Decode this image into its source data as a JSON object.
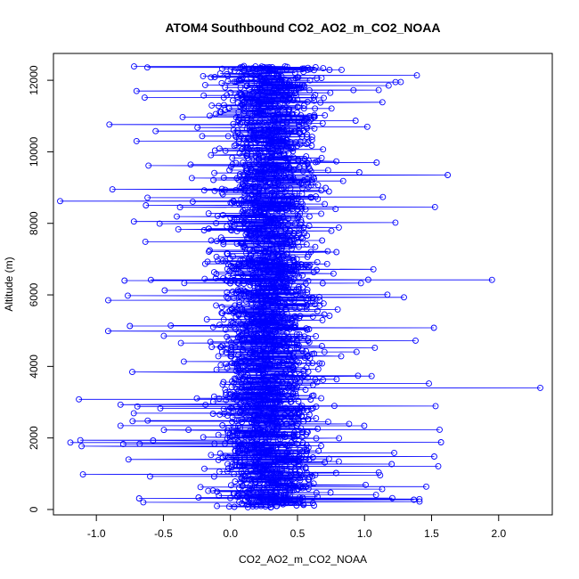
{
  "chart_data": {
    "type": "scatter",
    "title": "ATOM4 Southbound CO2_AO2_m_CO2_NOAA",
    "xlabel": "CO2_AO2_m_CO2_NOAA",
    "ylabel": "Altitude (m)",
    "xlim": [
      -1.32,
      2.4
    ],
    "ylim": [
      -150,
      12750
    ],
    "xticks": [
      -1.0,
      -0.5,
      0.0,
      0.5,
      1.0,
      1.5,
      2.0
    ],
    "xtick_labels": [
      "-1.0",
      "-0.5",
      "0.0",
      "0.5",
      "1.0",
      "1.5",
      "2.0"
    ],
    "yticks": [
      0,
      2000,
      4000,
      6000,
      8000,
      10000,
      12000
    ],
    "ytick_labels": [
      "0",
      "2000",
      "4000",
      "6000",
      "8000",
      "10000",
      "12000"
    ],
    "grid": false,
    "legend": "none",
    "series": [
      {
        "color": "#0000ff",
        "marker": "open-circle",
        "line": true,
        "note_points": [
          {
            "x": 2.31,
            "y": 3400
          },
          {
            "x": 1.95,
            "y": 6420
          },
          {
            "x": 1.62,
            "y": 9350
          },
          {
            "x": -1.27,
            "y": 8620
          },
          {
            "x": -1.13,
            "y": 3080
          },
          {
            "x": -1.11,
            "y": 1770
          },
          {
            "x": -1.1,
            "y": 980
          },
          {
            "x": 1.56,
            "y": 2230
          },
          {
            "x": 1.57,
            "y": 1880
          },
          {
            "x": 1.55,
            "y": 1210
          },
          {
            "x": 1.48,
            "y": 3520
          },
          {
            "x": 1.27,
            "y": 11950
          },
          {
            "x": 1.18,
            "y": 11850
          },
          {
            "x": 0.55,
            "y": 12330
          },
          {
            "x": -0.62,
            "y": 12360
          },
          {
            "x": -0.7,
            "y": 11700
          },
          {
            "x": -0.7,
            "y": 10300
          },
          {
            "x": -0.88,
            "y": 8950
          },
          {
            "x": -0.72,
            "y": 8050
          },
          {
            "x": -0.79,
            "y": 6400
          },
          {
            "x": -0.75,
            "y": 5130
          },
          {
            "x": -0.82,
            "y": 2930
          },
          {
            "x": -0.73,
            "y": 2470
          },
          {
            "x": -0.8,
            "y": 1830
          },
          {
            "x": -0.76,
            "y": 1400
          },
          {
            "x": -0.65,
            "y": 200
          },
          {
            "x": 1.41,
            "y": 220
          },
          {
            "x": 1.46,
            "y": 640
          },
          {
            "x": 1.52,
            "y": 1480
          },
          {
            "x": 1.53,
            "y": 2890
          },
          {
            "x": 1.38,
            "y": 4720
          },
          {
            "x": 1.23,
            "y": 8020
          },
          {
            "x": 1.02,
            "y": 10700
          },
          {
            "x": 1.09,
            "y": 9700
          },
          {
            "x": 0.3,
            "y": 60
          },
          {
            "x": 0.1,
            "y": 12400
          }
        ]
      }
    ]
  }
}
